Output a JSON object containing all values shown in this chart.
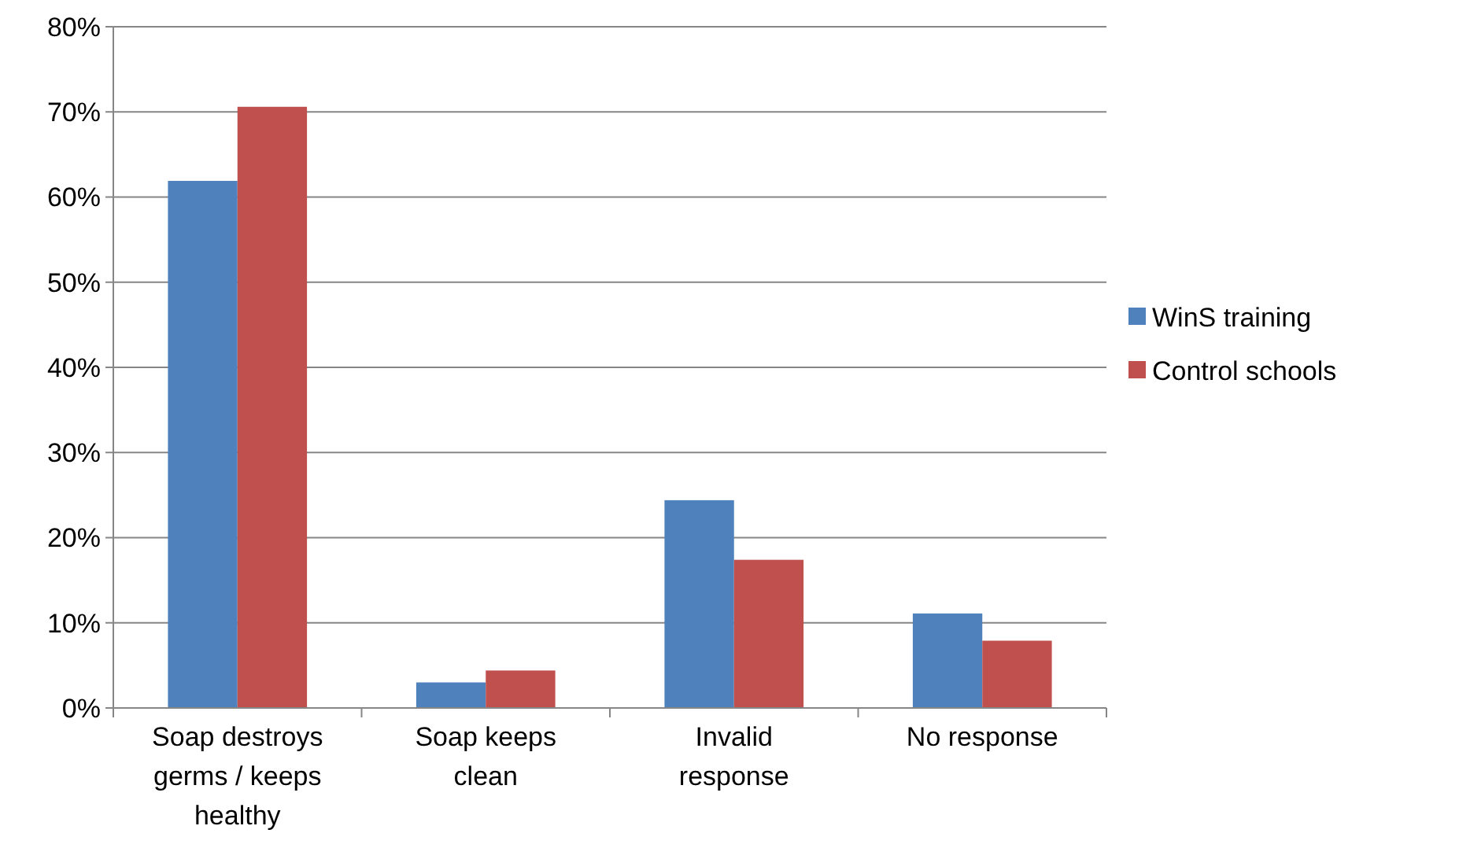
{
  "chart_data": {
    "type": "bar",
    "categories": [
      "Soap destroys germs / keeps healthy",
      "Soap keeps clean",
      "Invalid response",
      "No response"
    ],
    "series": [
      {
        "name": "WinS training",
        "color": "#4f81bd",
        "values": [
          61.9,
          3.0,
          24.4,
          11.1
        ]
      },
      {
        "name": "Control schools",
        "color": "#c0504d",
        "values": [
          70.6,
          4.4,
          17.4,
          7.9
        ]
      }
    ],
    "ylim": [
      0,
      80
    ],
    "yticks": [
      {
        "value": 0,
        "label": "0%"
      },
      {
        "value": 10,
        "label": "10%"
      },
      {
        "value": 20,
        "label": "20%"
      },
      {
        "value": 30,
        "label": "30%"
      },
      {
        "value": 40,
        "label": "40%"
      },
      {
        "value": 50,
        "label": "50%"
      },
      {
        "value": 60,
        "label": "60%"
      },
      {
        "value": 70,
        "label": "70%"
      },
      {
        "value": 80,
        "label": "80%"
      }
    ],
    "grid": "y",
    "legend": "right"
  }
}
